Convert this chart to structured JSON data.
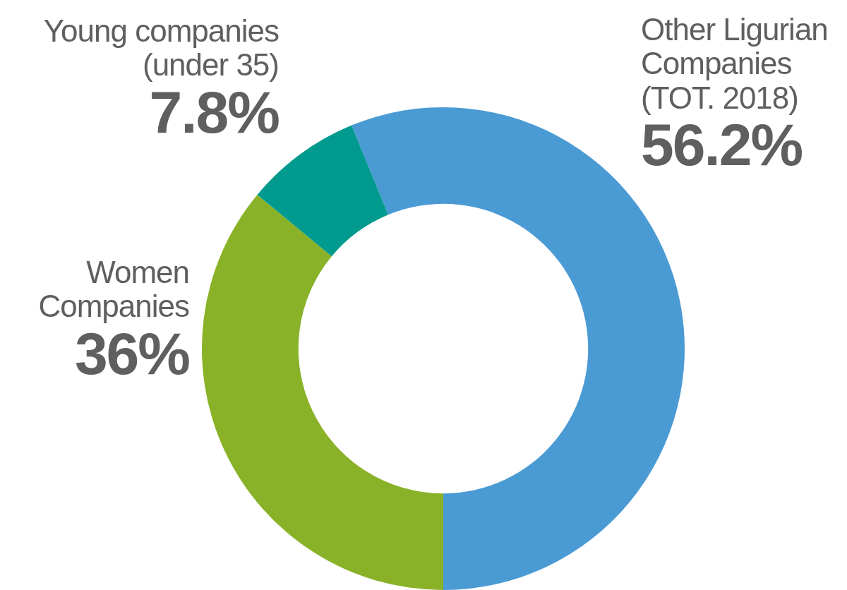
{
  "chart_data": {
    "type": "donut",
    "categories": [
      "Other Ligurian Companies (TOT. 2018)",
      "Women Companies",
      "Young companies (under 35)"
    ],
    "values": [
      56.2,
      36,
      7.8
    ],
    "colors": [
      "#4a9ad4",
      "#8ab228",
      "#009b8e"
    ],
    "value_labels": [
      "56.2%",
      "36%",
      "7.8%"
    ],
    "legend": false
  }
}
